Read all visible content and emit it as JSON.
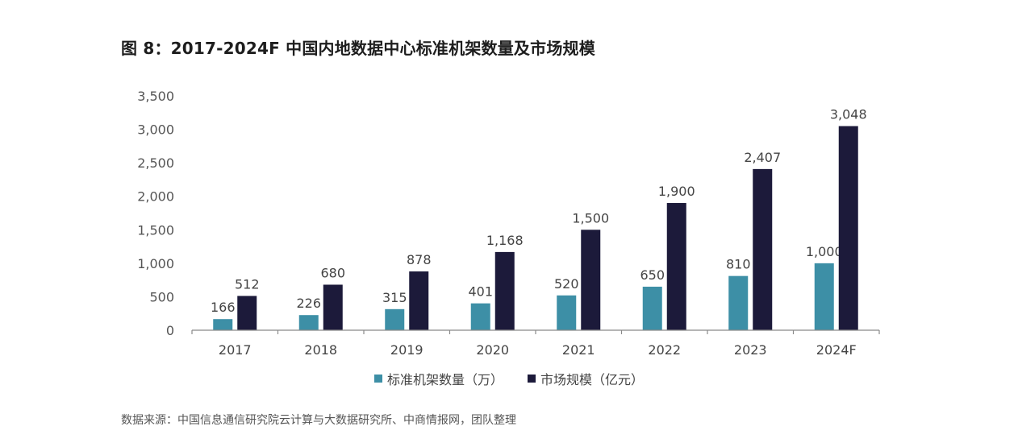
{
  "figure": {
    "title": "图 8：2017-2024F 中国内地数据中心标准机架数量及市场规模",
    "source": "数据来源：中国信息通信研究院云计算与大数据研究所、中商情报网，团队整理"
  },
  "chart_data": {
    "type": "bar",
    "categories": [
      "2017",
      "2018",
      "2019",
      "2020",
      "2021",
      "2022",
      "2023",
      "2024F"
    ],
    "series": [
      {
        "name": "标准机架数量（万）",
        "values": [
          166,
          226,
          315,
          401,
          520,
          650,
          810,
          1000
        ],
        "labels": [
          "166",
          "226",
          "315",
          "401",
          "520",
          "650",
          "810",
          "1,000"
        ],
        "color": "#3d8fa6"
      },
      {
        "name": "市场规模（亿元）",
        "values": [
          512,
          680,
          878,
          1168,
          1500,
          1900,
          2407,
          3048
        ],
        "labels": [
          "512",
          "680",
          "878",
          "1,168",
          "1,500",
          "1,900",
          "2,407",
          "3,048"
        ],
        "color": "#1c1a3a"
      }
    ],
    "ylim": [
      0,
      3500
    ],
    "yticks": [
      0,
      500,
      1000,
      1500,
      2000,
      2500,
      3000,
      3500
    ],
    "ytick_labels": [
      "0",
      "500",
      "1,000",
      "1,500",
      "2,000",
      "2,500",
      "3,000",
      "3,500"
    ],
    "grid": false,
    "legend_position": "bottom-center"
  }
}
